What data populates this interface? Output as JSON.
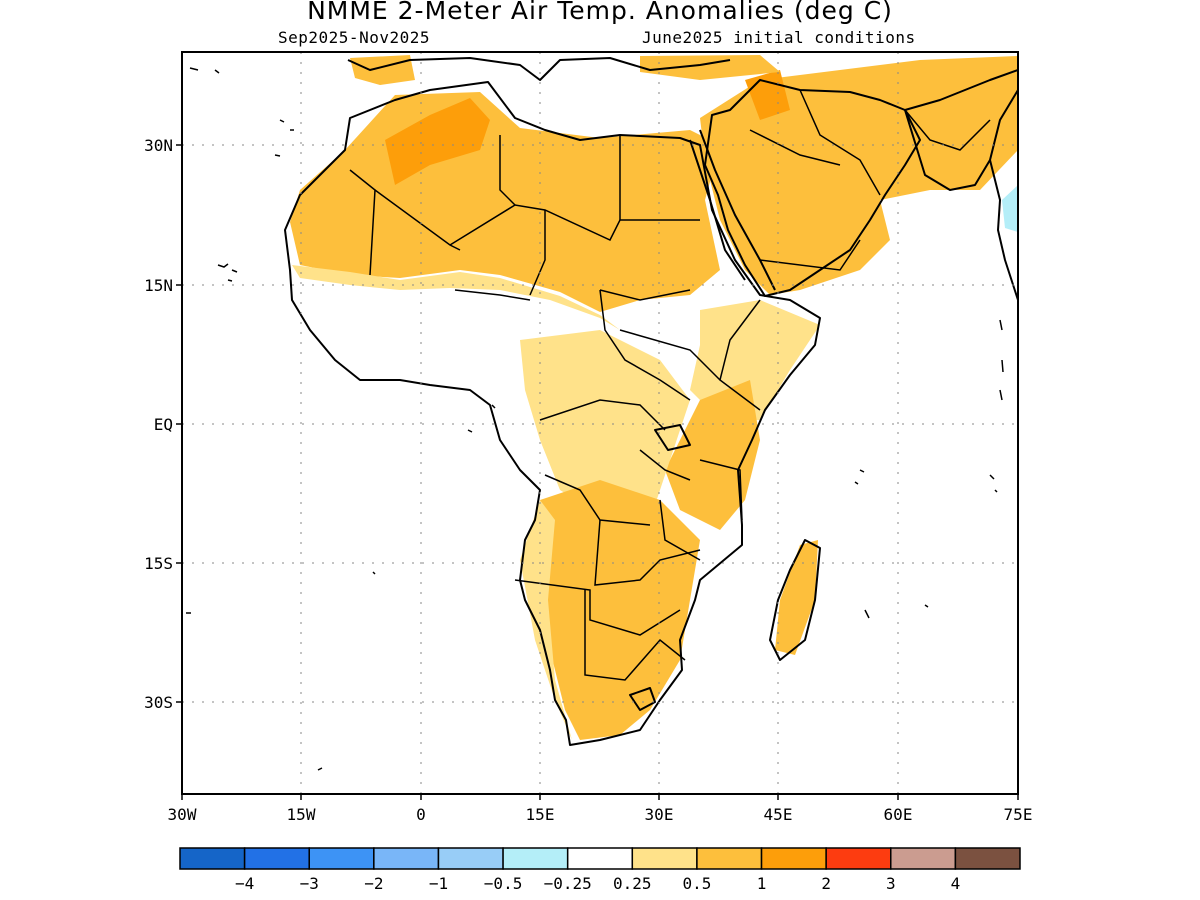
{
  "header": {
    "title": "NMME 2-Meter Air Temp. Anomalies (deg C)",
    "season": "Sep2025-Nov2025",
    "init": "June2025 initial conditions"
  },
  "map": {
    "lat_ticks": [
      "30N",
      "15N",
      "EQ",
      "15S",
      "30S"
    ],
    "lon_ticks": [
      "30W",
      "15W",
      "0",
      "15E",
      "30E",
      "45E",
      "60E",
      "75E"
    ],
    "grid": true
  },
  "colorbar": {
    "colors": [
      "#1565c8",
      "#2271e6",
      "#3d93f5",
      "#79b6f8",
      "#98cdf7",
      "#b4eef8",
      "#ffffff",
      "#ffe28a",
      "#fdbf3c",
      "#fd9e0a",
      "#fd3c10",
      "#cb9c90",
      "#7b5140"
    ],
    "labels": [
      "-4",
      "-3",
      "-2",
      "-1",
      "-0.5",
      "-0.25",
      "0.25",
      "0.5",
      "1",
      "2",
      "3",
      "4"
    ]
  },
  "shading_colors": {
    "light": "#ffe28a",
    "medium": "#fdbf3c",
    "strong": "#fd9e0a",
    "cool": "#b4eef8"
  }
}
